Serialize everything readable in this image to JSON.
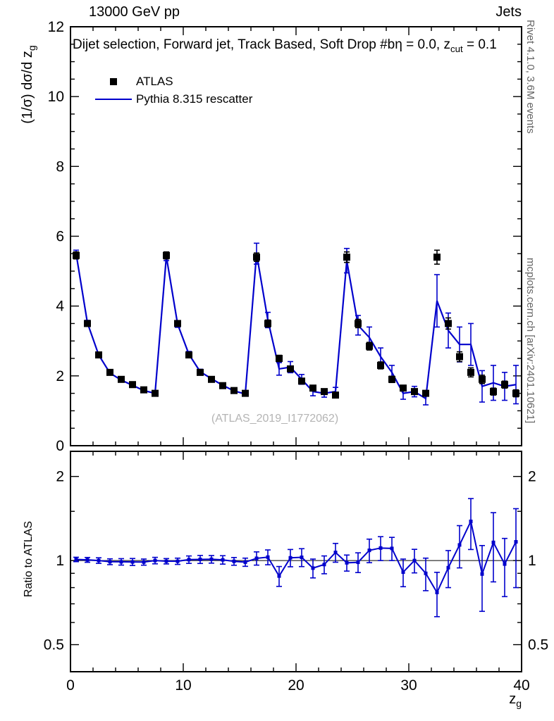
{
  "header": {
    "top_left": "13000 GeV pp",
    "top_right": "Jets",
    "plot_title": "Dijet selection, Forward jet, Track Based, Soft Drop #bη = 0.0, z",
    "plot_title_sub": "cut",
    "plot_title_tail": " = 0.1"
  },
  "legend": {
    "entries": [
      {
        "label": "ATLAS",
        "marker": "filled-square",
        "color": "#000000"
      },
      {
        "label": "Pythia 8.315 rescatter",
        "marker": "line",
        "color": "#0000cc"
      }
    ]
  },
  "watermark": {
    "text": "(ATLAS_2019_I1772062)"
  },
  "side_notes": {
    "top": "Rivet 4.1.0,  3.6M events",
    "bottom": "mcplots.cern.ch [arXiv:2401.10621]"
  },
  "axes": {
    "y_label_main": "(1/σ) dσ/d z",
    "y_label_sub": "g",
    "x_label_main": "z",
    "x_label_sub": "g",
    "ratio_label": "Ratio to ATLAS"
  },
  "colors": {
    "atlas_marker": "#000000",
    "pythia_line": "#0000cc",
    "watermark_gray": "#b4b4b4",
    "side_note_gray": "#666666"
  },
  "chart_data": {
    "type": "scatter+line with ratio panel",
    "title": "Dijet selection, Forward jet, Track Based, Soft Drop #bη = 0.0, z_cut = 0.1",
    "xlabel": "z_g",
    "ylabel": "(1/σ) dσ/d z_g",
    "ratio_ylabel": "Ratio to ATLAS",
    "legend_position": "top-left-inside",
    "grid": false,
    "xlim": [
      0,
      40
    ],
    "ylim_main": [
      0,
      12
    ],
    "ylim_ratio": [
      0.4,
      2.46
    ],
    "ratio_scale": "log",
    "x_ticks": [
      0,
      10,
      20,
      30,
      40
    ],
    "x_minor_step": 2,
    "y_ticks_main": [
      0,
      2,
      4,
      6,
      8,
      10,
      12
    ],
    "y_minor_step_main": 0.5,
    "ratio_ticks": [
      0.5,
      1,
      2
    ],
    "ratio_minor_ticks": [
      0.6,
      0.7,
      0.8,
      0.9,
      1.5
    ],
    "ratio_definition": "Pythia / ATLAS",
    "x": [
      0.5,
      1.5,
      2.5,
      3.5,
      4.5,
      5.5,
      6.5,
      7.5,
      8.5,
      9.5,
      10.5,
      11.5,
      12.5,
      13.5,
      14.5,
      15.5,
      16.5,
      17.5,
      18.5,
      19.5,
      20.5,
      21.5,
      22.5,
      23.5,
      24.5,
      25.5,
      26.5,
      27.5,
      28.5,
      29.5,
      30.5,
      31.5,
      32.5,
      33.5,
      34.5,
      35.5,
      36.5,
      37.5,
      38.5,
      39.5
    ],
    "series": [
      {
        "name": "ATLAS",
        "type": "scatter",
        "color": "#000000",
        "values": [
          5.45,
          3.5,
          2.6,
          2.1,
          1.9,
          1.75,
          1.6,
          1.5,
          5.45,
          3.5,
          2.6,
          2.1,
          1.9,
          1.72,
          1.58,
          1.5,
          5.4,
          3.5,
          2.5,
          2.2,
          1.85,
          1.65,
          1.55,
          1.45,
          5.4,
          3.5,
          2.85,
          2.3,
          1.9,
          1.65,
          1.55,
          1.5,
          5.4,
          3.5,
          2.55,
          2.1,
          1.9,
          1.55,
          1.75,
          1.5
        ],
        "errors": [
          0.1,
          0.08,
          0.07,
          0.06,
          0.06,
          0.05,
          0.05,
          0.05,
          0.1,
          0.08,
          0.07,
          0.06,
          0.06,
          0.05,
          0.05,
          0.05,
          0.12,
          0.1,
          0.09,
          0.08,
          0.07,
          0.07,
          0.06,
          0.06,
          0.15,
          0.12,
          0.11,
          0.1,
          0.09,
          0.08,
          0.08,
          0.08,
          0.2,
          0.16,
          0.14,
          0.13,
          0.12,
          0.1,
          0.1,
          0.1
        ]
      },
      {
        "name": "Pythia 8.315 rescatter",
        "type": "line",
        "color": "#0000cc",
        "values": [
          5.5,
          3.52,
          2.6,
          2.08,
          1.88,
          1.73,
          1.58,
          1.5,
          5.42,
          3.48,
          2.62,
          2.12,
          1.92,
          1.73,
          1.57,
          1.48,
          5.5,
          3.6,
          2.2,
          2.25,
          1.9,
          1.55,
          1.5,
          1.55,
          5.3,
          3.45,
          3.1,
          2.55,
          2.1,
          1.5,
          1.55,
          1.35,
          4.15,
          3.3,
          2.9,
          2.9,
          1.7,
          1.8,
          1.7,
          1.75
        ],
        "errors": [
          0.1,
          0.07,
          0.06,
          0.05,
          0.05,
          0.05,
          0.04,
          0.04,
          0.12,
          0.09,
          0.08,
          0.07,
          0.06,
          0.06,
          0.05,
          0.05,
          0.3,
          0.22,
          0.18,
          0.16,
          0.14,
          0.12,
          0.11,
          0.12,
          0.35,
          0.28,
          0.3,
          0.25,
          0.2,
          0.17,
          0.15,
          0.18,
          0.75,
          0.5,
          0.5,
          0.6,
          0.45,
          0.5,
          0.4,
          0.55
        ]
      }
    ]
  }
}
